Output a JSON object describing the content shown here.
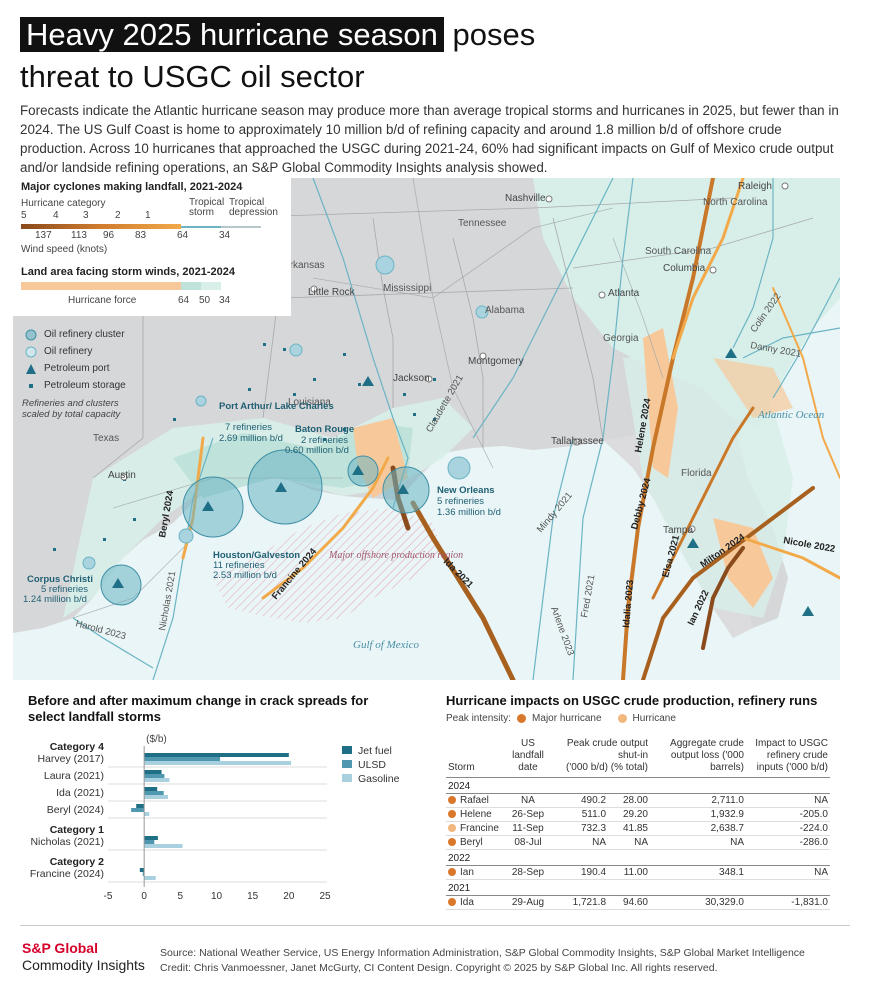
{
  "title": {
    "highlight": "Heavy 2025 hurricane season",
    "rest_line1": " poses",
    "line2": "threat to USGC oil sector"
  },
  "intro": "Forecasts indicate the Atlantic hurricane season may produce more than average tropical storms and hurricanes in 2025, but fewer than in 2024. The US Gulf Coast is home to approximately 10 million b/d of refining capacity and around 1.8 million b/d of offshore crude production. Across 10 hurricanes that approached the USGC during 2021-24, 60% had significant impacts on Gulf of Mexico crude output and/or landside refining operations, an S&P Global Commodity Insights analysis showed.",
  "legend": {
    "cyclones_title": "Major cyclones making landfall, 2021-2024",
    "hurricane_category": "Hurricane category",
    "categories": [
      "5",
      "4",
      "3",
      "2",
      "1"
    ],
    "tropical_storm": "Tropical storm",
    "tropical_depression": "Tropical depression",
    "speeds": [
      "137",
      "113",
      "96",
      "83",
      "64",
      "34"
    ],
    "wind_speed": "Wind speed (knots)",
    "land_title": "Land area facing storm winds, 2021-2024",
    "hurricane_force": "Hurricane force",
    "land_speeds": [
      "64",
      "50",
      "34"
    ],
    "colors": {
      "cat5": "#8a4a1c",
      "cat4": "#a8601f",
      "cat3": "#c9782a",
      "cat2": "#e08f36",
      "cat1": "#f2a94a",
      "ts": "#6bb4c4",
      "td": "#b9c6cc",
      "land64": "#f7c99a",
      "land50": "#bfe3da",
      "land34": "#d8efe9"
    }
  },
  "map_legend": {
    "cluster": "Oil refinery cluster",
    "refinery": "Oil refinery",
    "port": "Petroleum port",
    "storage": "Petroleum storage",
    "note": "Refineries and clusters scaled by total capacity"
  },
  "map": {
    "states": [
      "Tennessee",
      "North Carolina",
      "South Carolina",
      "Arkansas",
      "Mississippi",
      "Alabama",
      "Georgia",
      "Louisiana",
      "Texas",
      "Florida"
    ],
    "cities": [
      "Nashville",
      "Raleigh",
      "Columbia",
      "Little Rock",
      "Atlanta",
      "Montgomery",
      "Jackson",
      "Tallahassee",
      "Austin",
      "Tampa"
    ],
    "water": [
      "Atlantic Ocean",
      "Gulf of Mexico"
    ],
    "offshore": "Major offshore production region",
    "clusters": [
      {
        "name": "Port Arthur/ Lake Charles",
        "refineries": "7 refineries",
        "capacity": "2.69 million b/d"
      },
      {
        "name": "Baton Rouge",
        "refineries": "2 refineries",
        "capacity": "0.60 million b/d"
      },
      {
        "name": "New Orleans",
        "refineries": "5 refineries",
        "capacity": "1.36 million b/d"
      },
      {
        "name": "Houston/Galveston",
        "refineries": "11 refineries",
        "capacity": "2.53 million b/d"
      },
      {
        "name": "Corpus Christi",
        "refineries": "5 refineries",
        "capacity": "1.24 million b/d"
      }
    ],
    "storms": [
      "Beryl 2024",
      "Francine 2024",
      "Ida 2021",
      "Helene 2024",
      "Debby 2024",
      "Milton 2024",
      "Idalia 2023",
      "Elsa 2021",
      "Ian 2022",
      "Nicole 2022",
      "Danny 2021",
      "Colin 2022",
      "Claudette 2021",
      "Nicholas 2021",
      "Harold 2023",
      "Mindy 2021",
      "Fred 2021",
      "Arlene 2023"
    ]
  },
  "crack": {
    "title": "Before and after maximum change in crack spreads for select landfall storms",
    "unit": "($/b)",
    "series": [
      {
        "name": "Jet fuel",
        "color": "#1f6f86"
      },
      {
        "name": "ULSD",
        "color": "#4f98b0"
      },
      {
        "name": "Gasoline",
        "color": "#a9d0df"
      }
    ],
    "groups": [
      {
        "label": "Category 4",
        "items": [
          {
            "name": "Harvey (2017)",
            "values": [
              20,
              10.5,
              20.3
            ]
          },
          {
            "name": "Laura (2021)",
            "values": [
              2.4,
              2.8,
              3.5
            ]
          },
          {
            "name": "Ida (2021)",
            "values": [
              1.8,
              2.7,
              3.3
            ]
          },
          {
            "name": "Beryl (2024)",
            "values": [
              -1.1,
              -1.8,
              0.7
            ]
          }
        ]
      },
      {
        "label": "Category 1",
        "items": [
          {
            "name": "Nicholas (2021)",
            "values": [
              1.9,
              1.4,
              5.3
            ]
          }
        ]
      },
      {
        "label": "Category 2",
        "items": [
          {
            "name": "Francine (2024)",
            "values": [
              -0.6,
              -0.2,
              1.6
            ]
          }
        ]
      }
    ],
    "ticks": [
      "-5",
      "0",
      "5",
      "10",
      "15",
      "20",
      "25"
    ],
    "xlim": [
      -5,
      25
    ]
  },
  "table": {
    "title": "Hurricane impacts on USGC crude production, refinery runs",
    "peak_label": "Peak intensity:",
    "major": "Major hurricane",
    "hurricane": "Hurricane",
    "major_color": "#d9772b",
    "hurricane_color": "#f2b77c",
    "headers": {
      "storm": "Storm",
      "landfall": "US landfall date",
      "peak": "Peak crude output shut-in",
      "peak_kbd": "('000 b/d)",
      "peak_pct": "(% total)",
      "agg": "Aggregate crude output loss ('000 barrels)",
      "impact": "Impact to USGC refinery crude inputs ('000 b/d)"
    },
    "years": [
      {
        "year": "2024",
        "rows": [
          {
            "storm": "Rafael",
            "type": "major",
            "date": "NA",
            "kbd": "490.2",
            "pct": "28.00",
            "agg": "2,711.0",
            "impact": "NA"
          },
          {
            "storm": "Helene",
            "type": "major",
            "date": "26-Sep",
            "kbd": "511.0",
            "pct": "29.20",
            "agg": "1,932.9",
            "impact": "-205.0"
          },
          {
            "storm": "Francine",
            "type": "hurricane",
            "date": "11-Sep",
            "kbd": "732.3",
            "pct": "41.85",
            "agg": "2,638.7",
            "impact": "-224.0"
          },
          {
            "storm": "Beryl",
            "type": "major",
            "date": "08-Jul",
            "kbd": "NA",
            "pct": "NA",
            "agg": "NA",
            "impact": "-286.0"
          }
        ]
      },
      {
        "year": "2022",
        "rows": [
          {
            "storm": "Ian",
            "type": "major",
            "date": "28-Sep",
            "kbd": "190.4",
            "pct": "11.00",
            "agg": "348.1",
            "impact": "NA"
          }
        ]
      },
      {
        "year": "2021",
        "rows": [
          {
            "storm": "Ida",
            "type": "major",
            "date": "29-Aug",
            "kbd": "1,721.8",
            "pct": "94.60",
            "agg": "30,329.0",
            "impact": "-1,831.0"
          }
        ]
      }
    ]
  },
  "footer": {
    "brand1": "S&P Global",
    "brand2": "Commodity Insights",
    "source": "Source: National Weather Service, US Energy Information Administration, S&P Global Commodity Insights, S&P Global Market Intelligence",
    "credit": "Credit: Chris Vanmoessner, Janet McGurty, CI Content Design.  Copyright © 2025 by S&P Global Inc.  All rights reserved."
  }
}
